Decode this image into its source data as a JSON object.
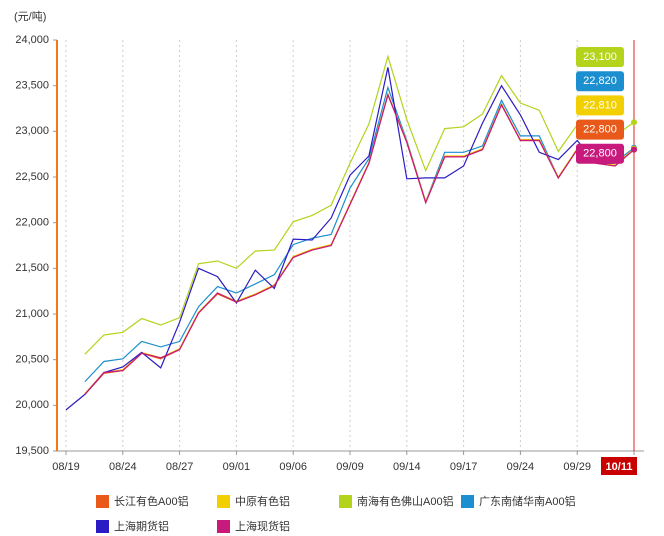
{
  "chart_data": {
    "type": "line",
    "y_label": "(元/吨)",
    "categories": [
      "08/19",
      null,
      null,
      "08/24",
      null,
      null,
      "08/27",
      null,
      null,
      "09/01",
      null,
      null,
      "09/06",
      null,
      null,
      "09/09",
      null,
      null,
      "09/14",
      null,
      null,
      "09/17",
      null,
      null,
      "09/24",
      null,
      null,
      "09/29",
      null,
      null,
      "10/11"
    ],
    "ylim": [
      19500,
      24000
    ],
    "yticks": [
      {
        "value": 19500,
        "label": "19,500"
      },
      {
        "value": 20000,
        "label": "20,000"
      },
      {
        "value": 20500,
        "label": "20,500"
      },
      {
        "value": 21000,
        "label": "21,000"
      },
      {
        "value": 21500,
        "label": "21,500"
      },
      {
        "value": 22000,
        "label": "22,000"
      },
      {
        "value": 22500,
        "label": "22,500"
      },
      {
        "value": 23000,
        "label": "23,000"
      },
      {
        "value": 23500,
        "label": "23,500"
      },
      {
        "value": 24000,
        "label": "24,000"
      }
    ],
    "grid": "x",
    "series": [
      {
        "name": "长江有色A00铝",
        "color": "#e8591a",
        "values": [
          null,
          20120,
          20350,
          20380,
          20570,
          20510,
          20610,
          21010,
          21220,
          21130,
          21210,
          21310,
          21620,
          21700,
          21750,
          22200,
          22650,
          23400,
          22880,
          22220,
          22720,
          22720,
          22800,
          23290,
          22900,
          22900,
          22490,
          22800,
          22650,
          22620,
          22800
        ],
        "value_labels": [
          null,
          null,
          null,
          null,
          null,
          null,
          null,
          null,
          null,
          null,
          null,
          null,
          null,
          null,
          null,
          null,
          null,
          null,
          null,
          null,
          null,
          null,
          null,
          null,
          null,
          null,
          null,
          null,
          null,
          null,
          "22,800"
        ]
      },
      {
        "name": "中原有色铝",
        "color": "#f2cf00",
        "values": [
          null,
          20130,
          20360,
          20390,
          20580,
          20520,
          20620,
          21020,
          21230,
          21140,
          21220,
          21320,
          21630,
          21710,
          21760,
          22210,
          22660,
          23410,
          22890,
          22230,
          22730,
          22730,
          22810,
          23300,
          22910,
          22910,
          22500,
          22810,
          22660,
          22630,
          22810
        ],
        "value_labels": [
          null,
          null,
          null,
          null,
          null,
          null,
          null,
          null,
          null,
          null,
          null,
          null,
          null,
          null,
          null,
          null,
          null,
          null,
          null,
          null,
          null,
          null,
          null,
          null,
          null,
          null,
          null,
          null,
          null,
          null,
          "22,810"
        ]
      },
      {
        "name": "南海有色佛山A00铝",
        "color": "#b3d31c",
        "values": [
          null,
          20560,
          20770,
          20800,
          20950,
          20880,
          20960,
          21550,
          21580,
          21500,
          21690,
          21700,
          22010,
          22080,
          22190,
          22650,
          23080,
          23820,
          23130,
          22570,
          23030,
          23050,
          23190,
          23610,
          23310,
          23230,
          22780,
          23070,
          22950,
          22950,
          23100
        ],
        "value_labels": [
          null,
          null,
          null,
          null,
          null,
          null,
          null,
          null,
          null,
          null,
          null,
          null,
          null,
          null,
          null,
          null,
          null,
          null,
          null,
          null,
          null,
          null,
          null,
          null,
          null,
          null,
          null,
          null,
          null,
          null,
          "23,100"
        ]
      },
      {
        "name": "广东南储华南A00铝",
        "color": "#1b8fcf",
        "values": [
          null,
          20260,
          20480,
          20510,
          20700,
          20640,
          20700,
          21080,
          21300,
          21230,
          21330,
          21430,
          21760,
          21830,
          21870,
          22380,
          22700,
          23480,
          22900,
          22230,
          22770,
          22770,
          22840,
          23340,
          22950,
          22950,
          22490,
          22810,
          22680,
          22660,
          22820
        ],
        "value_labels": [
          null,
          null,
          null,
          null,
          null,
          null,
          null,
          null,
          null,
          null,
          null,
          null,
          null,
          null,
          null,
          null,
          null,
          null,
          null,
          null,
          null,
          null,
          null,
          null,
          null,
          null,
          null,
          null,
          null,
          null,
          "22,820"
        ]
      },
      {
        "name": "上海期货铝",
        "color": "#2b1bc4",
        "values": [
          19950,
          20120,
          20360,
          20420,
          20580,
          20410,
          20910,
          21500,
          21410,
          21120,
          21480,
          21280,
          21820,
          21810,
          22050,
          22520,
          22730,
          23700,
          22480,
          22490,
          22490,
          22620,
          23090,
          23500,
          23180,
          22770,
          22690,
          22900,
          22650,
          22650,
          null
        ]
      },
      {
        "name": "上海现货铝",
        "color": "#c8197c",
        "values": [
          null,
          20120,
          20360,
          20380,
          20570,
          20520,
          20610,
          21010,
          21230,
          21130,
          21210,
          21310,
          21620,
          21700,
          21750,
          22200,
          22650,
          23400,
          22880,
          22220,
          22720,
          22720,
          22800,
          23290,
          22900,
          22900,
          22490,
          22800,
          22650,
          22620,
          22800
        ],
        "value_labels": [
          null,
          null,
          null,
          null,
          null,
          null,
          null,
          null,
          null,
          null,
          null,
          null,
          null,
          null,
          null,
          null,
          null,
          null,
          null,
          null,
          null,
          null,
          null,
          null,
          null,
          null,
          null,
          null,
          null,
          null,
          "22,800"
        ]
      }
    ]
  }
}
